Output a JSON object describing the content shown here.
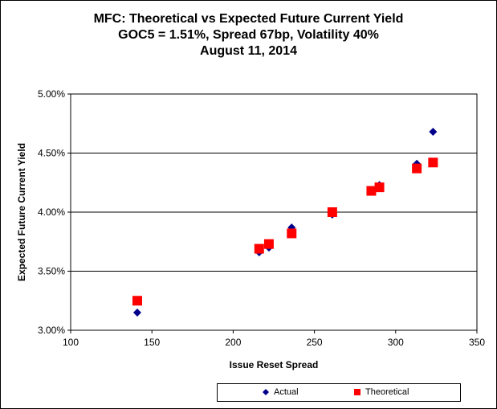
{
  "chart_data": {
    "type": "scatter",
    "title": [
      "MFC: Theoretical vs Expected Future Current Yield",
      "GOC5 = 1.51%, Spread 67bp, Volatility 40%",
      "August 11, 2014"
    ],
    "xlabel": "Issue Reset Spread",
    "ylabel": "Expected Future Current Yield",
    "xlim": [
      100,
      350
    ],
    "ylim": [
      3.0,
      5.0
    ],
    "x_ticks": [
      100,
      150,
      200,
      250,
      300,
      350
    ],
    "y_ticks": [
      3.0,
      3.5,
      4.0,
      4.5,
      5.0
    ],
    "x_tick_labels": [
      "100",
      "150",
      "200",
      "250",
      "300",
      "350"
    ],
    "y_tick_labels": [
      "3.00%",
      "3.50%",
      "4.00%",
      "4.50%",
      "5.00%"
    ],
    "gridlines": "horizontal",
    "legend_position": "bottom",
    "series": [
      {
        "name": "Actual",
        "marker": "diamond",
        "color": "#00008B",
        "x": [
          141,
          216,
          222,
          236,
          261,
          285,
          290,
          313,
          323
        ],
        "y": [
          3.15,
          3.66,
          3.7,
          3.87,
          3.98,
          4.18,
          4.23,
          4.41,
          4.68
        ]
      },
      {
        "name": "Theoretical",
        "marker": "square",
        "color": "#FF0000",
        "x": [
          141,
          216,
          222,
          236,
          261,
          285,
          290,
          313,
          323
        ],
        "y": [
          3.25,
          3.69,
          3.73,
          3.82,
          4.0,
          4.18,
          4.21,
          4.37,
          4.42
        ]
      }
    ]
  }
}
